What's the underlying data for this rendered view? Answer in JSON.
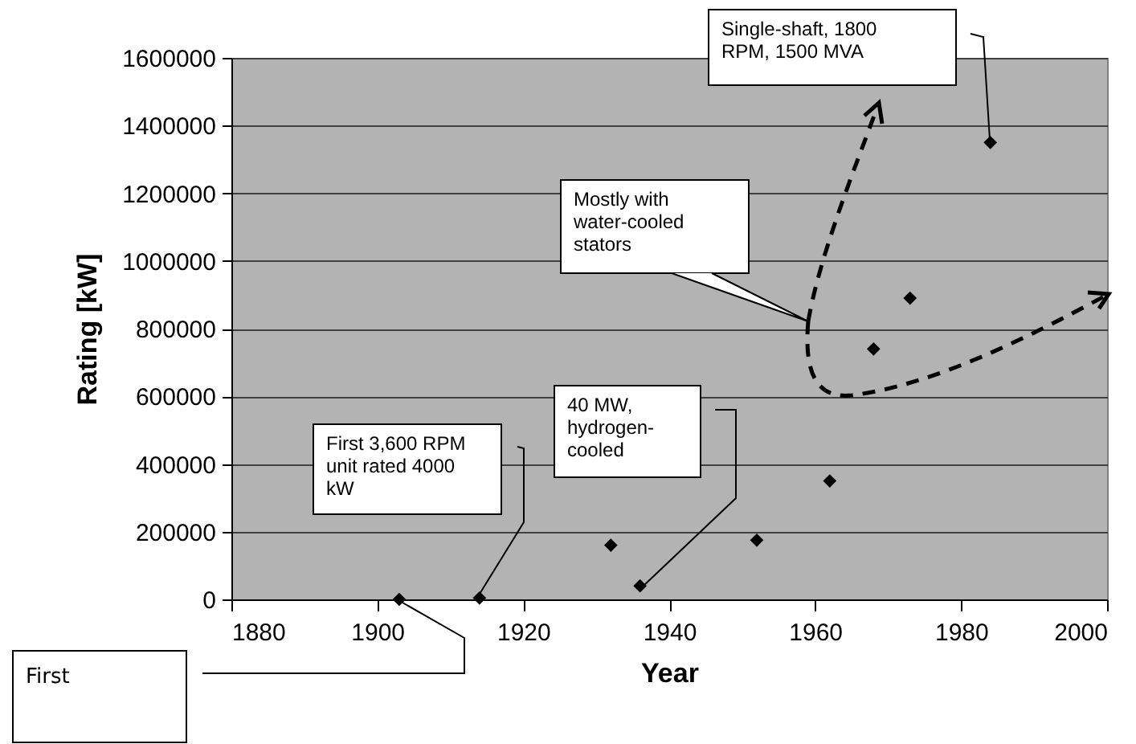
{
  "chart_data": {
    "type": "scatter",
    "xlabel": "Year",
    "ylabel": "Rating [kW]",
    "x": [
      1903,
      1914,
      1932,
      1936,
      1952,
      1962,
      1968,
      1973,
      1984
    ],
    "values": [
      0,
      4000,
      160000,
      40000,
      175000,
      350000,
      740000,
      890000,
      1350000
    ],
    "color": "#000000",
    "marker": "diamond",
    "xlim": [
      1880,
      2000
    ],
    "xticks": [
      1880,
      1900,
      1920,
      1940,
      1960,
      1980,
      2000
    ],
    "ylim": [
      0,
      1600000
    ],
    "yticks": [
      0,
      200000,
      400000,
      600000,
      800000,
      1000000,
      1200000,
      1400000,
      1600000
    ],
    "grid": "y",
    "annotations": [
      "First",
      "First 3,600 RPM unit rated 4000 kW",
      "40 MW, hydrogen-cooled",
      "Mostly with water-cooled stators",
      "Single-shaft, 1800 RPM, 1500 MVA"
    ]
  }
}
